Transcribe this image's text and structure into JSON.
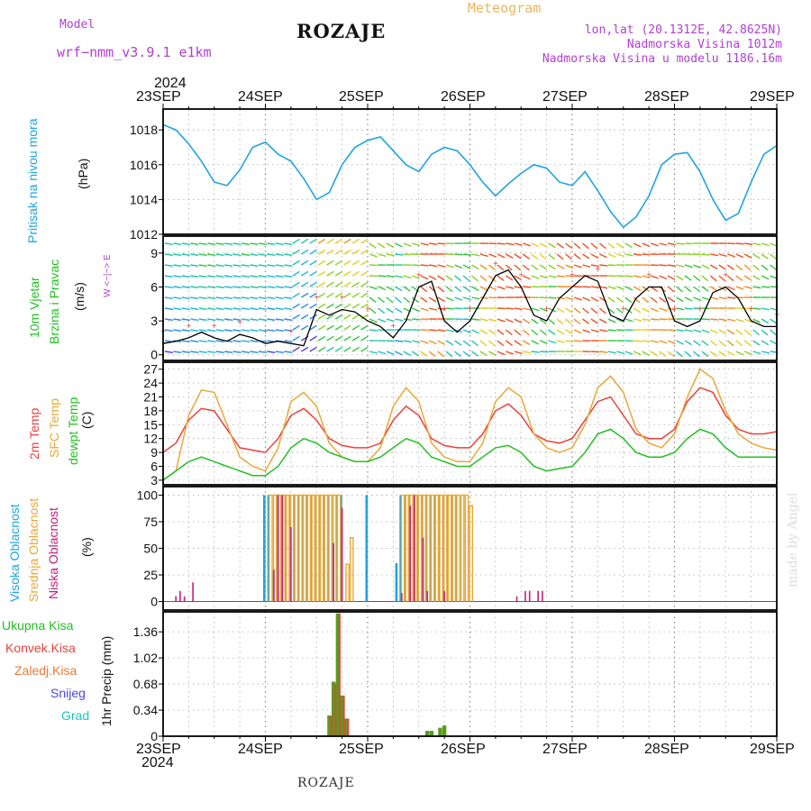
{
  "header": {
    "model_label": "Model",
    "model_name": "wrf−nmm_v3.9.1  e1km",
    "station": "ROZAJE",
    "product": "Meteogram",
    "coords": "lon,lat (20.1312E, 42.8625N)",
    "elevation": "Nadmorska Visina 1012m",
    "model_elevation": "Nadmorska Visina u modelu 1186.16m"
  },
  "time_axis": {
    "year": "2024",
    "dates": [
      "23SEP",
      "24SEP",
      "25SEP",
      "26SEP",
      "27SEP",
      "28SEP",
      "29SEP"
    ]
  },
  "panels": {
    "pressure": {
      "title": "Pritisak na nivou mora",
      "unit": "(hPa)"
    },
    "wind": {
      "title1": "10m Vjetar",
      "title2": "Brzina i Pravac",
      "unit": "(m/s)",
      "compass": "W <−|−> E"
    },
    "temp": {
      "t2m": "2m Temp",
      "sfc": "SFC Temp",
      "dew": "dewpt Temp",
      "unit": "(C)"
    },
    "cloud": {
      "high": "Visoka Oblacnost",
      "mid": "Srednja Oblacnost",
      "low": "Niska Oblacnost",
      "unit": "(%)"
    },
    "precip": {
      "total": "Ukupna Kisa",
      "conv": "Konvek.Kisa",
      "frozen": "Zaledj.Kisa",
      "snow": "Snijeg",
      "grad": "Grad",
      "unit": "1hr Precip (mm)"
    }
  },
  "footer": {
    "station": "ROZAJE",
    "credit": "made by Angel"
  },
  "colors": {
    "pressure": "#1fa4e0",
    "t2m": "#e8413c",
    "sfc": "#e8a838",
    "dew": "#22c020",
    "high": "#1fa4e0",
    "mid": "#e8a838",
    "low": "#c0207a",
    "precip": "#5a9a20",
    "purple": "#b040d0"
  },
  "chart_data": [
    {
      "type": "line",
      "title": "Pritisak na nivou mora",
      "ylabel": "(hPa)",
      "ylim": [
        1012,
        1019.2
      ],
      "yticks": [
        1012,
        1014,
        1016,
        1018
      ],
      "x": [
        0,
        3,
        6,
        9,
        12,
        15,
        18,
        21,
        24,
        27,
        30,
        33,
        36,
        39,
        42,
        45,
        48,
        51,
        54,
        57,
        60,
        63,
        66,
        69,
        72,
        75,
        78,
        81,
        84,
        87,
        90,
        93,
        96,
        99,
        102,
        105,
        108,
        111,
        114,
        117,
        120,
        123,
        126,
        129,
        132,
        135,
        138,
        141,
        144
      ],
      "series": [
        {
          "values": [
            1018.3,
            1018.0,
            1017.2,
            1016.2,
            1015.0,
            1014.8,
            1015.7,
            1017.0,
            1017.3,
            1016.6,
            1016.2,
            1015.2,
            1014.0,
            1014.4,
            1016.0,
            1017.0,
            1017.4,
            1017.6,
            1016.8,
            1016.0,
            1015.6,
            1016.6,
            1017.0,
            1016.8,
            1016.0,
            1015.0,
            1014.2,
            1014.9,
            1015.5,
            1016.0,
            1015.8,
            1015.0,
            1014.8,
            1015.6,
            1014.5,
            1013.3,
            1012.4,
            1013.0,
            1014.2,
            1016.0,
            1016.6,
            1016.7,
            1015.6,
            1014.0,
            1012.8,
            1013.2,
            1015.0,
            1016.6,
            1017.1
          ]
        }
      ]
    },
    {
      "type": "line",
      "title": "10m Vjetar Brzina i Pravac",
      "ylabel": "(m/s)",
      "ylim": [
        -0.5,
        10.5
      ],
      "yticks": [
        0,
        3,
        6,
        9
      ],
      "x": [
        0,
        3,
        6,
        9,
        12,
        15,
        18,
        21,
        24,
        27,
        30,
        33,
        36,
        39,
        42,
        45,
        48,
        51,
        54,
        57,
        60,
        63,
        66,
        69,
        72,
        75,
        78,
        81,
        84,
        87,
        90,
        93,
        96,
        99,
        102,
        105,
        108,
        111,
        114,
        117,
        120,
        123,
        126,
        129,
        132,
        135,
        138,
        141,
        144
      ],
      "series": [
        {
          "values": [
            1.0,
            1.2,
            1.5,
            2.0,
            1.5,
            1.2,
            1.8,
            1.5,
            1.0,
            1.2,
            1.0,
            0.8,
            4.0,
            3.5,
            4.0,
            3.8,
            3.0,
            2.5,
            1.5,
            3.0,
            6.0,
            6.5,
            3.0,
            2.0,
            3.0,
            5.0,
            7.0,
            7.5,
            6.0,
            3.5,
            3.0,
            5.0,
            6.0,
            7.0,
            6.5,
            3.5,
            3.0,
            5.0,
            6.0,
            6.0,
            3.0,
            2.5,
            3.0,
            5.5,
            6.0,
            5.0,
            3.0,
            2.5,
            2.5
          ]
        }
      ]
    },
    {
      "type": "line",
      "title": "Temp",
      "ylabel": "(C)",
      "ylim": [
        2,
        28.5
      ],
      "yticks": [
        3,
        6,
        9,
        12,
        15,
        18,
        21,
        24,
        27
      ],
      "x": [
        0,
        3,
        6,
        9,
        12,
        15,
        18,
        21,
        24,
        27,
        30,
        33,
        36,
        39,
        42,
        45,
        48,
        51,
        54,
        57,
        60,
        63,
        66,
        69,
        72,
        75,
        78,
        81,
        84,
        87,
        90,
        93,
        96,
        99,
        102,
        105,
        108,
        111,
        114,
        117,
        120,
        123,
        126,
        129,
        132,
        135,
        138,
        141,
        144
      ],
      "series": [
        {
          "name": "2m Temp",
          "values": [
            9,
            11,
            16,
            18.5,
            18,
            14,
            10,
            9.5,
            9,
            12,
            17,
            18.5,
            16,
            12,
            10.5,
            10,
            10,
            11,
            16,
            19,
            17,
            12,
            10.5,
            10,
            10,
            13,
            18,
            19.5,
            17,
            13,
            11.5,
            11,
            12,
            16,
            20,
            21,
            17,
            13,
            12,
            12,
            14,
            20,
            23,
            22,
            17,
            14,
            13,
            13,
            13.5
          ]
        },
        {
          "name": "SFC Temp",
          "values": [
            3,
            5,
            17,
            22.5,
            22,
            15,
            8,
            6,
            5,
            10,
            20,
            22,
            19,
            11,
            8,
            7,
            7,
            10,
            19,
            23,
            20,
            11,
            8,
            7,
            7,
            11,
            20,
            23,
            21,
            13,
            10,
            9,
            10,
            15,
            23,
            25.5,
            22,
            14,
            11,
            10,
            13,
            21,
            27,
            25,
            18,
            13,
            11,
            10,
            9.5
          ]
        },
        {
          "name": "dewpt Temp",
          "values": [
            3,
            5,
            7,
            8,
            7,
            6,
            5,
            4,
            4,
            6,
            10,
            12,
            11,
            9,
            8,
            7,
            7,
            8,
            10,
            12,
            11,
            8,
            7,
            6,
            6,
            8,
            10,
            10.5,
            9,
            6,
            5,
            5.5,
            6,
            9,
            13,
            14,
            12,
            9,
            8,
            8,
            9,
            12,
            14,
            13,
            10,
            8,
            8,
            8,
            8
          ]
        }
      ]
    },
    {
      "type": "bar",
      "title": "Oblacnost",
      "ylabel": "(%)",
      "ylim": [
        -8,
        108
      ],
      "yticks": [
        0,
        25,
        50,
        75,
        100
      ],
      "series": [
        {
          "name": "Visoka Oblacnost",
          "x": [
            24,
            25,
            26,
            27,
            28,
            29,
            30,
            31,
            32,
            33,
            34,
            35,
            36,
            37,
            38,
            39,
            40,
            41,
            42,
            48,
            55,
            56,
            57,
            58,
            59,
            60,
            61,
            62,
            63,
            64,
            65,
            66,
            67,
            68,
            69
          ],
          "values": [
            100,
            100,
            28,
            100,
            100,
            100,
            100,
            100,
            100,
            100,
            100,
            100,
            100,
            100,
            100,
            100,
            55,
            100,
            100,
            100,
            36,
            100,
            100,
            100,
            100,
            100,
            100,
            100,
            100,
            100,
            100,
            100,
            100,
            100,
            100
          ]
        },
        {
          "name": "Srednja Oblacnost",
          "x": [
            25,
            26,
            27,
            28,
            29,
            30,
            31,
            32,
            33,
            34,
            35,
            36,
            37,
            38,
            39,
            40,
            41,
            43,
            44,
            56,
            57,
            58,
            59,
            60,
            61,
            62,
            63,
            64,
            65,
            66,
            67,
            68,
            69,
            70,
            71,
            72
          ],
          "values": [
            100,
            100,
            100,
            100,
            100,
            100,
            100,
            100,
            100,
            100,
            100,
            100,
            100,
            100,
            100,
            100,
            100,
            35,
            60,
            100,
            100,
            100,
            100,
            100,
            100,
            100,
            100,
            100,
            100,
            100,
            100,
            100,
            100,
            100,
            100,
            90
          ]
        },
        {
          "name": "Niska Oblacnost",
          "x": [
            3,
            4,
            5,
            7,
            26,
            27,
            28,
            30,
            40,
            42,
            56,
            58,
            59,
            61,
            62,
            66,
            83,
            85,
            86,
            88,
            89
          ],
          "values": [
            5,
            10,
            5,
            18,
            30,
            100,
            100,
            70,
            55,
            88,
            8,
            90,
            100,
            60,
            10,
            10,
            5,
            10,
            10,
            10,
            10
          ]
        }
      ]
    },
    {
      "type": "bar",
      "title": "1hr Precip",
      "ylabel": "1hr Precip (mm)",
      "ylim": [
        0,
        1.62
      ],
      "yticks": [
        0,
        0.34,
        0.68,
        1.02,
        1.36
      ],
      "series": [
        {
          "name": "Ukupna Kisa",
          "x": [
            39,
            40,
            41,
            42,
            43,
            62,
            63,
            65,
            66
          ],
          "values": [
            0.27,
            0.71,
            1.6,
            0.53,
            0.23,
            0.07,
            0.07,
            0.11,
            0.14
          ]
        },
        {
          "name": "Konvek.Kisa",
          "x": [
            39,
            40,
            41,
            42,
            43
          ],
          "values": [
            0.27,
            0.68,
            1.6,
            0.53,
            0.23
          ]
        }
      ]
    }
  ]
}
